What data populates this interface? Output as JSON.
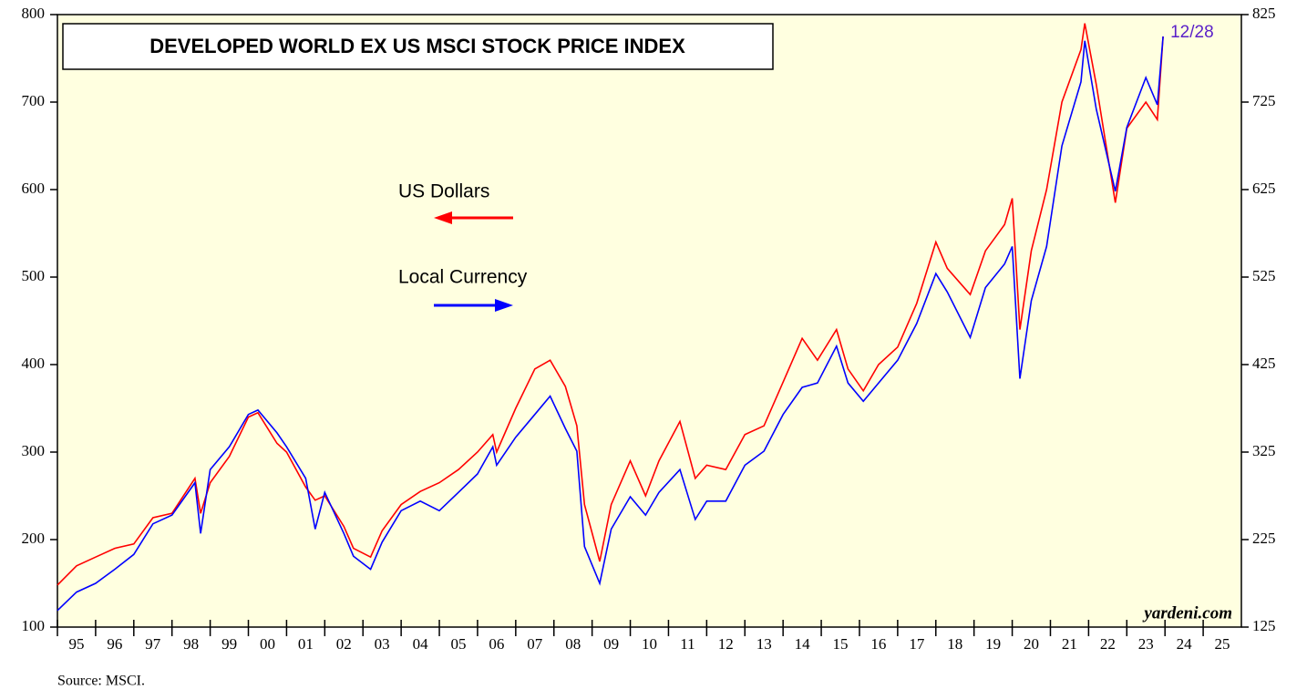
{
  "chart_data": {
    "type": "line",
    "title": "DEVELOPED WORLD EX US MSCI STOCK PRICE INDEX",
    "annotation": "12/28",
    "watermark": "yardeni.com",
    "source": "Source: MSCI.",
    "x": [
      1995.0,
      1995.5,
      1996.0,
      1996.5,
      1997.0,
      1997.5,
      1998.0,
      1998.6,
      1998.75,
      1999.0,
      1999.5,
      2000.0,
      2000.25,
      2000.75,
      2001.0,
      2001.5,
      2001.75,
      2002.0,
      2002.5,
      2002.75,
      2003.2,
      2003.5,
      2004.0,
      2004.5,
      2005.0,
      2005.5,
      2006.0,
      2006.4,
      2006.5,
      2007.0,
      2007.5,
      2007.9,
      2008.3,
      2008.6,
      2008.8,
      2009.2,
      2009.5,
      2010.0,
      2010.4,
      2010.75,
      2011.3,
      2011.7,
      2012.0,
      2012.5,
      2013.0,
      2013.5,
      2014.0,
      2014.5,
      2014.9,
      2015.4,
      2015.7,
      2016.1,
      2016.5,
      2017.0,
      2017.5,
      2018.0,
      2018.3,
      2018.9,
      2019.3,
      2019.8,
      2020.0,
      2020.2,
      2020.5,
      2020.9,
      2021.3,
      2021.8,
      2021.9,
      2022.2,
      2022.7,
      2023.0,
      2023.5,
      2023.8,
      2023.95
    ],
    "series": [
      {
        "name": "US Dollars",
        "color": "#ff0000",
        "axis": "y",
        "values": [
          148,
          170,
          180,
          190,
          195,
          225,
          230,
          270,
          230,
          265,
          295,
          340,
          345,
          310,
          300,
          260,
          245,
          250,
          215,
          190,
          180,
          210,
          240,
          255,
          265,
          280,
          300,
          320,
          300,
          350,
          395,
          405,
          375,
          330,
          240,
          175,
          240,
          290,
          250,
          290,
          335,
          270,
          285,
          280,
          320,
          330,
          380,
          430,
          405,
          440,
          395,
          370,
          400,
          420,
          470,
          540,
          510,
          480,
          530,
          560,
          590,
          440,
          530,
          600,
          700,
          760,
          790,
          720,
          585,
          670,
          700,
          680,
          775
        ]
      },
      {
        "name": "Local Currency",
        "color": "#0000ff",
        "axis": "y2",
        "values": [
          144,
          165,
          175,
          191,
          208,
          243,
          253,
          290,
          232,
          305,
          331,
          368,
          373,
          347,
          331,
          295,
          237,
          279,
          232,
          206,
          191,
          222,
          258,
          269,
          258,
          279,
          300,
          331,
          310,
          342,
          368,
          389,
          352,
          326,
          217,
          175,
          237,
          274,
          253,
          279,
          305,
          248,
          269,
          269,
          310,
          326,
          368,
          399,
          404,
          446,
          404,
          383,
          404,
          430,
          472,
          529,
          508,
          456,
          513,
          540,
          560,
          409,
          498,
          560,
          675,
          748,
          795,
          717,
          623,
          696,
          753,
          722,
          800
        ]
      }
    ],
    "xlim": [
      1995,
      2026
    ],
    "xticks": [
      {
        "value": 1995,
        "label": "95"
      },
      {
        "value": 1996,
        "label": "96"
      },
      {
        "value": 1997,
        "label": "97"
      },
      {
        "value": 1998,
        "label": "98"
      },
      {
        "value": 1999,
        "label": "99"
      },
      {
        "value": 2000,
        "label": "00"
      },
      {
        "value": 2001,
        "label": "01"
      },
      {
        "value": 2002,
        "label": "02"
      },
      {
        "value": 2003,
        "label": "03"
      },
      {
        "value": 2004,
        "label": "04"
      },
      {
        "value": 2005,
        "label": "05"
      },
      {
        "value": 2006,
        "label": "06"
      },
      {
        "value": 2007,
        "label": "07"
      },
      {
        "value": 2008,
        "label": "08"
      },
      {
        "value": 2009,
        "label": "09"
      },
      {
        "value": 2010,
        "label": "10"
      },
      {
        "value": 2011,
        "label": "11"
      },
      {
        "value": 2012,
        "label": "12"
      },
      {
        "value": 2013,
        "label": "13"
      },
      {
        "value": 2014,
        "label": "14"
      },
      {
        "value": 2015,
        "label": "15"
      },
      {
        "value": 2016,
        "label": "16"
      },
      {
        "value": 2017,
        "label": "17"
      },
      {
        "value": 2018,
        "label": "18"
      },
      {
        "value": 2019,
        "label": "19"
      },
      {
        "value": 2020,
        "label": "20"
      },
      {
        "value": 2021,
        "label": "21"
      },
      {
        "value": 2022,
        "label": "22"
      },
      {
        "value": 2023,
        "label": "23"
      },
      {
        "value": 2024,
        "label": "24"
      },
      {
        "value": 2025,
        "label": "25"
      }
    ],
    "ylim": [
      100,
      800
    ],
    "yticks": [
      100,
      200,
      300,
      400,
      500,
      600,
      700,
      800
    ],
    "y2lim": [
      125,
      825
    ],
    "y2ticks": [
      125,
      225,
      325,
      425,
      525,
      625,
      725,
      825
    ]
  }
}
